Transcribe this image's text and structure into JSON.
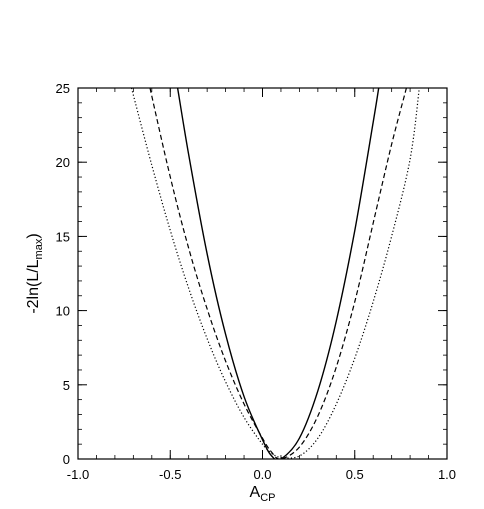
{
  "chart_data": {
    "type": "line",
    "title": "",
    "xlabel": {
      "main": "A",
      "sub": "CP"
    },
    "ylabel": {
      "prefix": "-2ln(L/L",
      "sub": "max",
      "suffix": ")"
    },
    "xlim": [
      -1.0,
      1.0
    ],
    "ylim": [
      0,
      25
    ],
    "x_ticks": [
      {
        "value": -1.0,
        "label": "-1.0"
      },
      {
        "value": -0.5,
        "label": "-0.5"
      },
      {
        "value": 0.0,
        "label": "0.0"
      },
      {
        "value": 0.5,
        "label": "0.5"
      },
      {
        "value": 1.0,
        "label": "1.0"
      }
    ],
    "y_ticks": [
      {
        "value": 0,
        "label": "0"
      },
      {
        "value": 5,
        "label": "5"
      },
      {
        "value": 10,
        "label": "10"
      },
      {
        "value": 15,
        "label": "15"
      },
      {
        "value": 20,
        "label": "20"
      },
      {
        "value": 25,
        "label": "25"
      }
    ],
    "x_minor_step": 0.1,
    "y_minor_step": 1,
    "grid": false,
    "legend": "none",
    "series": [
      {
        "style": "solid",
        "x": [
          -0.46,
          -0.4,
          -0.3,
          -0.2,
          -0.1,
          0.0,
          0.05,
          0.1,
          0.2,
          0.3,
          0.4,
          0.5,
          0.6,
          0.63
        ],
        "y": [
          25,
          20.5,
          13.8,
          8.4,
          4.2,
          1.3,
          0.2,
          0.0,
          1.4,
          4.6,
          9.3,
          15.4,
          22.7,
          25
        ]
      },
      {
        "style": "dashed",
        "x": [
          -0.61,
          -0.5,
          -0.4,
          -0.3,
          -0.2,
          -0.1,
          0.0,
          0.05,
          0.1,
          0.2,
          0.3,
          0.4,
          0.5,
          0.6,
          0.7,
          0.78
        ],
        "y": [
          25,
          19.0,
          14.2,
          10.1,
          6.6,
          3.7,
          1.4,
          0.45,
          0.0,
          0.8,
          2.9,
          6.2,
          10.6,
          15.9,
          21.2,
          25
        ]
      },
      {
        "style": "dotted",
        "x": [
          -0.71,
          -0.6,
          -0.5,
          -0.4,
          -0.3,
          -0.2,
          -0.1,
          0.0,
          0.05,
          0.1,
          0.2,
          0.3,
          0.4,
          0.5,
          0.6,
          0.7,
          0.8,
          0.85
        ],
        "y": [
          25,
          19.8,
          15.4,
          11.5,
          8.1,
          5.2,
          2.8,
          1.0,
          0.4,
          0.1,
          0.2,
          1.4,
          3.7,
          6.8,
          10.6,
          15.0,
          20.2,
          25
        ]
      }
    ]
  }
}
